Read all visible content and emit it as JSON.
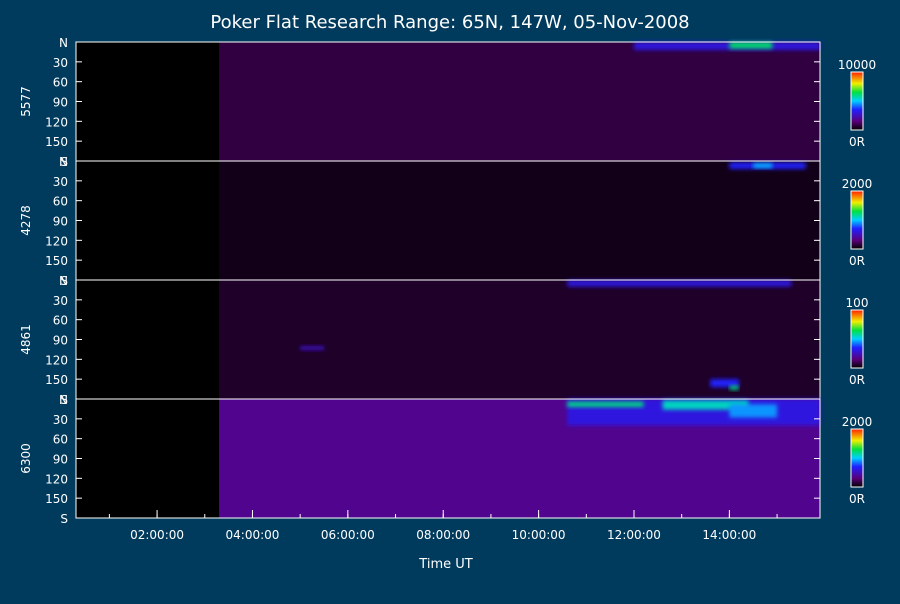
{
  "chart_data": {
    "type": "heatmap",
    "title": "Poker Flat Research Range: 65N, 147W, 05-Nov-2008",
    "xlabel": "Time UT",
    "x_ticks": [
      "02:00:00",
      "04:00:00",
      "06:00:00",
      "08:00:00",
      "10:00:00",
      "12:00:00",
      "14:00:00"
    ],
    "x_range_hours": [
      0.3,
      15.9
    ],
    "y_ticks": [
      "N",
      "30",
      "60",
      "90",
      "120",
      "150",
      "S"
    ],
    "y_range_deg": [
      0,
      180
    ],
    "data_start_hour": 3.3,
    "panels": [
      {
        "wavelength": "5577",
        "colorbar_max": "10000",
        "colorbar_min": "0R",
        "features": [
          {
            "start_hour": 3.3,
            "end_hour": 15.9,
            "deg_from": 0,
            "deg_to": 180,
            "level": 0.08
          },
          {
            "start_hour": 12.0,
            "end_hour": 15.9,
            "deg_from": 0,
            "deg_to": 12,
            "level": 0.3
          },
          {
            "start_hour": 14.0,
            "end_hour": 14.9,
            "deg_from": 0,
            "deg_to": 10,
            "level": 0.62
          }
        ]
      },
      {
        "wavelength": "4278",
        "colorbar_max": "2000",
        "colorbar_min": "0R",
        "features": [
          {
            "start_hour": 3.3,
            "end_hour": 15.9,
            "deg_from": 0,
            "deg_to": 180,
            "level": 0.03
          },
          {
            "start_hour": 14.0,
            "end_hour": 15.6,
            "deg_from": 2,
            "deg_to": 12,
            "level": 0.35
          },
          {
            "start_hour": 14.5,
            "end_hour": 14.9,
            "deg_from": 4,
            "deg_to": 10,
            "level": 0.5
          }
        ]
      },
      {
        "wavelength": "4861",
        "colorbar_max": "100",
        "colorbar_min": "0R",
        "features": [
          {
            "start_hour": 3.3,
            "end_hour": 15.9,
            "deg_from": 0,
            "deg_to": 180,
            "level": 0.05
          },
          {
            "start_hour": 10.6,
            "end_hour": 15.3,
            "deg_from": 0,
            "deg_to": 10,
            "level": 0.3
          },
          {
            "start_hour": 5.0,
            "end_hour": 5.5,
            "deg_from": 100,
            "deg_to": 106,
            "level": 0.25
          },
          {
            "start_hour": 13.6,
            "end_hour": 14.2,
            "deg_from": 150,
            "deg_to": 162,
            "level": 0.35
          },
          {
            "start_hour": 14.0,
            "end_hour": 14.2,
            "deg_from": 160,
            "deg_to": 166,
            "level": 0.6
          }
        ]
      },
      {
        "wavelength": "6300",
        "colorbar_max": "2000",
        "colorbar_min": "0R",
        "features": [
          {
            "start_hour": 3.3,
            "end_hour": 15.9,
            "deg_from": 0,
            "deg_to": 180,
            "level": 0.18
          },
          {
            "start_hour": 10.6,
            "end_hour": 15.9,
            "deg_from": 0,
            "deg_to": 40,
            "level": 0.3
          },
          {
            "start_hour": 10.6,
            "end_hour": 12.2,
            "deg_from": 4,
            "deg_to": 12,
            "level": 0.6
          },
          {
            "start_hour": 12.6,
            "end_hour": 14.4,
            "deg_from": 2,
            "deg_to": 16,
            "level": 0.55
          },
          {
            "start_hour": 14.0,
            "end_hour": 15.0,
            "deg_from": 8,
            "deg_to": 28,
            "level": 0.45
          }
        ]
      }
    ]
  }
}
